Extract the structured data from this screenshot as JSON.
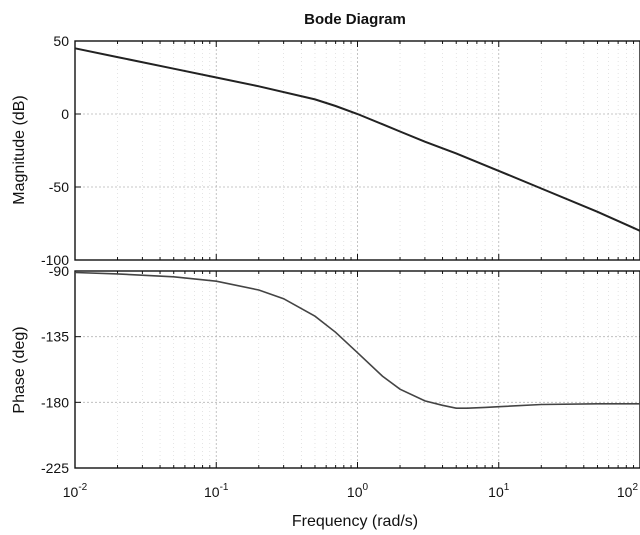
{
  "chart_data": {
    "type": "line",
    "title": "Bode Diagram",
    "xlabel": "Frequency  (rad/s)",
    "x_scale": "log",
    "xlim": [
      0.01,
      100
    ],
    "x_ticks": [
      {
        "base": "10",
        "exp": "-2"
      },
      {
        "base": "10",
        "exp": "-1"
      },
      {
        "base": "10",
        "exp": "0"
      },
      {
        "base": "10",
        "exp": "1"
      },
      {
        "base": "10",
        "exp": "2"
      }
    ],
    "grid": true,
    "panels": [
      {
        "name": "magnitude",
        "ylabel": "Magnitude (dB)",
        "ylim": [
          -100,
          50
        ],
        "y_ticks": [
          "50",
          "0",
          "-50",
          "-100"
        ],
        "series": [
          {
            "x": [
              0.01,
              0.02,
              0.05,
              0.1,
              0.2,
              0.5,
              0.7,
              1,
              1.5,
              2,
              3,
              5,
              10,
              20,
              50,
              100
            ],
            "y": [
              45,
              39,
              31,
              25,
              19,
              10,
              5.5,
              0,
              -7,
              -12,
              -19,
              -27,
              -39,
              -51,
              -67,
              -80
            ]
          }
        ]
      },
      {
        "name": "phase",
        "ylabel": "Phase (deg)",
        "ylim": [
          -225,
          -90
        ],
        "y_ticks": [
          "-90",
          "-135",
          "-180",
          "-225"
        ],
        "series": [
          {
            "x": [
              0.01,
              0.02,
              0.05,
              0.1,
              0.2,
              0.3,
              0.5,
              0.7,
              1,
              1.5,
              2,
              3,
              4,
              5,
              6,
              8,
              10,
              20,
              50,
              100
            ],
            "y": [
              -91,
              -92,
              -94,
              -97,
              -103,
              -109,
              -121,
              -132,
              -146,
              -162,
              -171,
              -179,
              -182,
              -184,
              -184,
              -183.5,
              -183,
              -181.5,
              -181,
              -181
            ]
          }
        ]
      }
    ]
  }
}
